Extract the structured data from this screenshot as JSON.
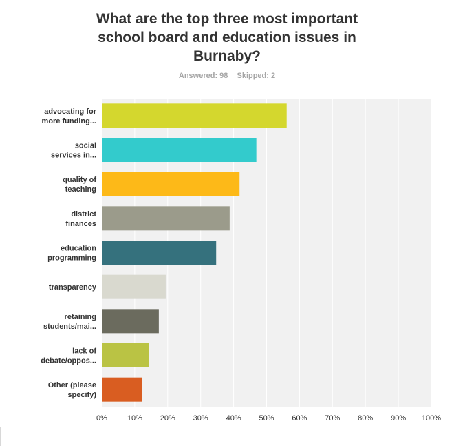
{
  "header": {
    "title": "What are the top three most important school board and education issues in Burnaby?",
    "answered": "Answered: 98",
    "skipped": "Skipped: 2"
  },
  "chart_data": {
    "type": "bar",
    "orientation": "horizontal",
    "title": "What are the top three most important school board and education issues in Burnaby?",
    "categories": [
      [
        "advocating for",
        "more funding..."
      ],
      [
        "social",
        "services in..."
      ],
      [
        "quality of",
        "teaching"
      ],
      [
        "district",
        "finances"
      ],
      [
        "education",
        "programming"
      ],
      [
        "transparency"
      ],
      [
        "retaining",
        "students/mai..."
      ],
      [
        "lack of",
        "debate/oppos..."
      ],
      [
        "Other (please",
        "specify)"
      ]
    ],
    "values": [
      56.1,
      46.9,
      41.8,
      38.8,
      34.7,
      19.4,
      17.3,
      14.3,
      12.2
    ],
    "unit": "%",
    "colors": [
      "#d4d72e",
      "#33cbcc",
      "#fdb918",
      "#9b9b8b",
      "#35717d",
      "#d9d9cf",
      "#6b6b5e",
      "#bac344",
      "#d95d21"
    ],
    "xlim": [
      0,
      100
    ],
    "xticks": [
      "0%",
      "10%",
      "20%",
      "30%",
      "40%",
      "50%",
      "60%",
      "70%",
      "80%",
      "90%",
      "100%"
    ],
    "grid": true,
    "plot_background": "#f1f1f1"
  }
}
